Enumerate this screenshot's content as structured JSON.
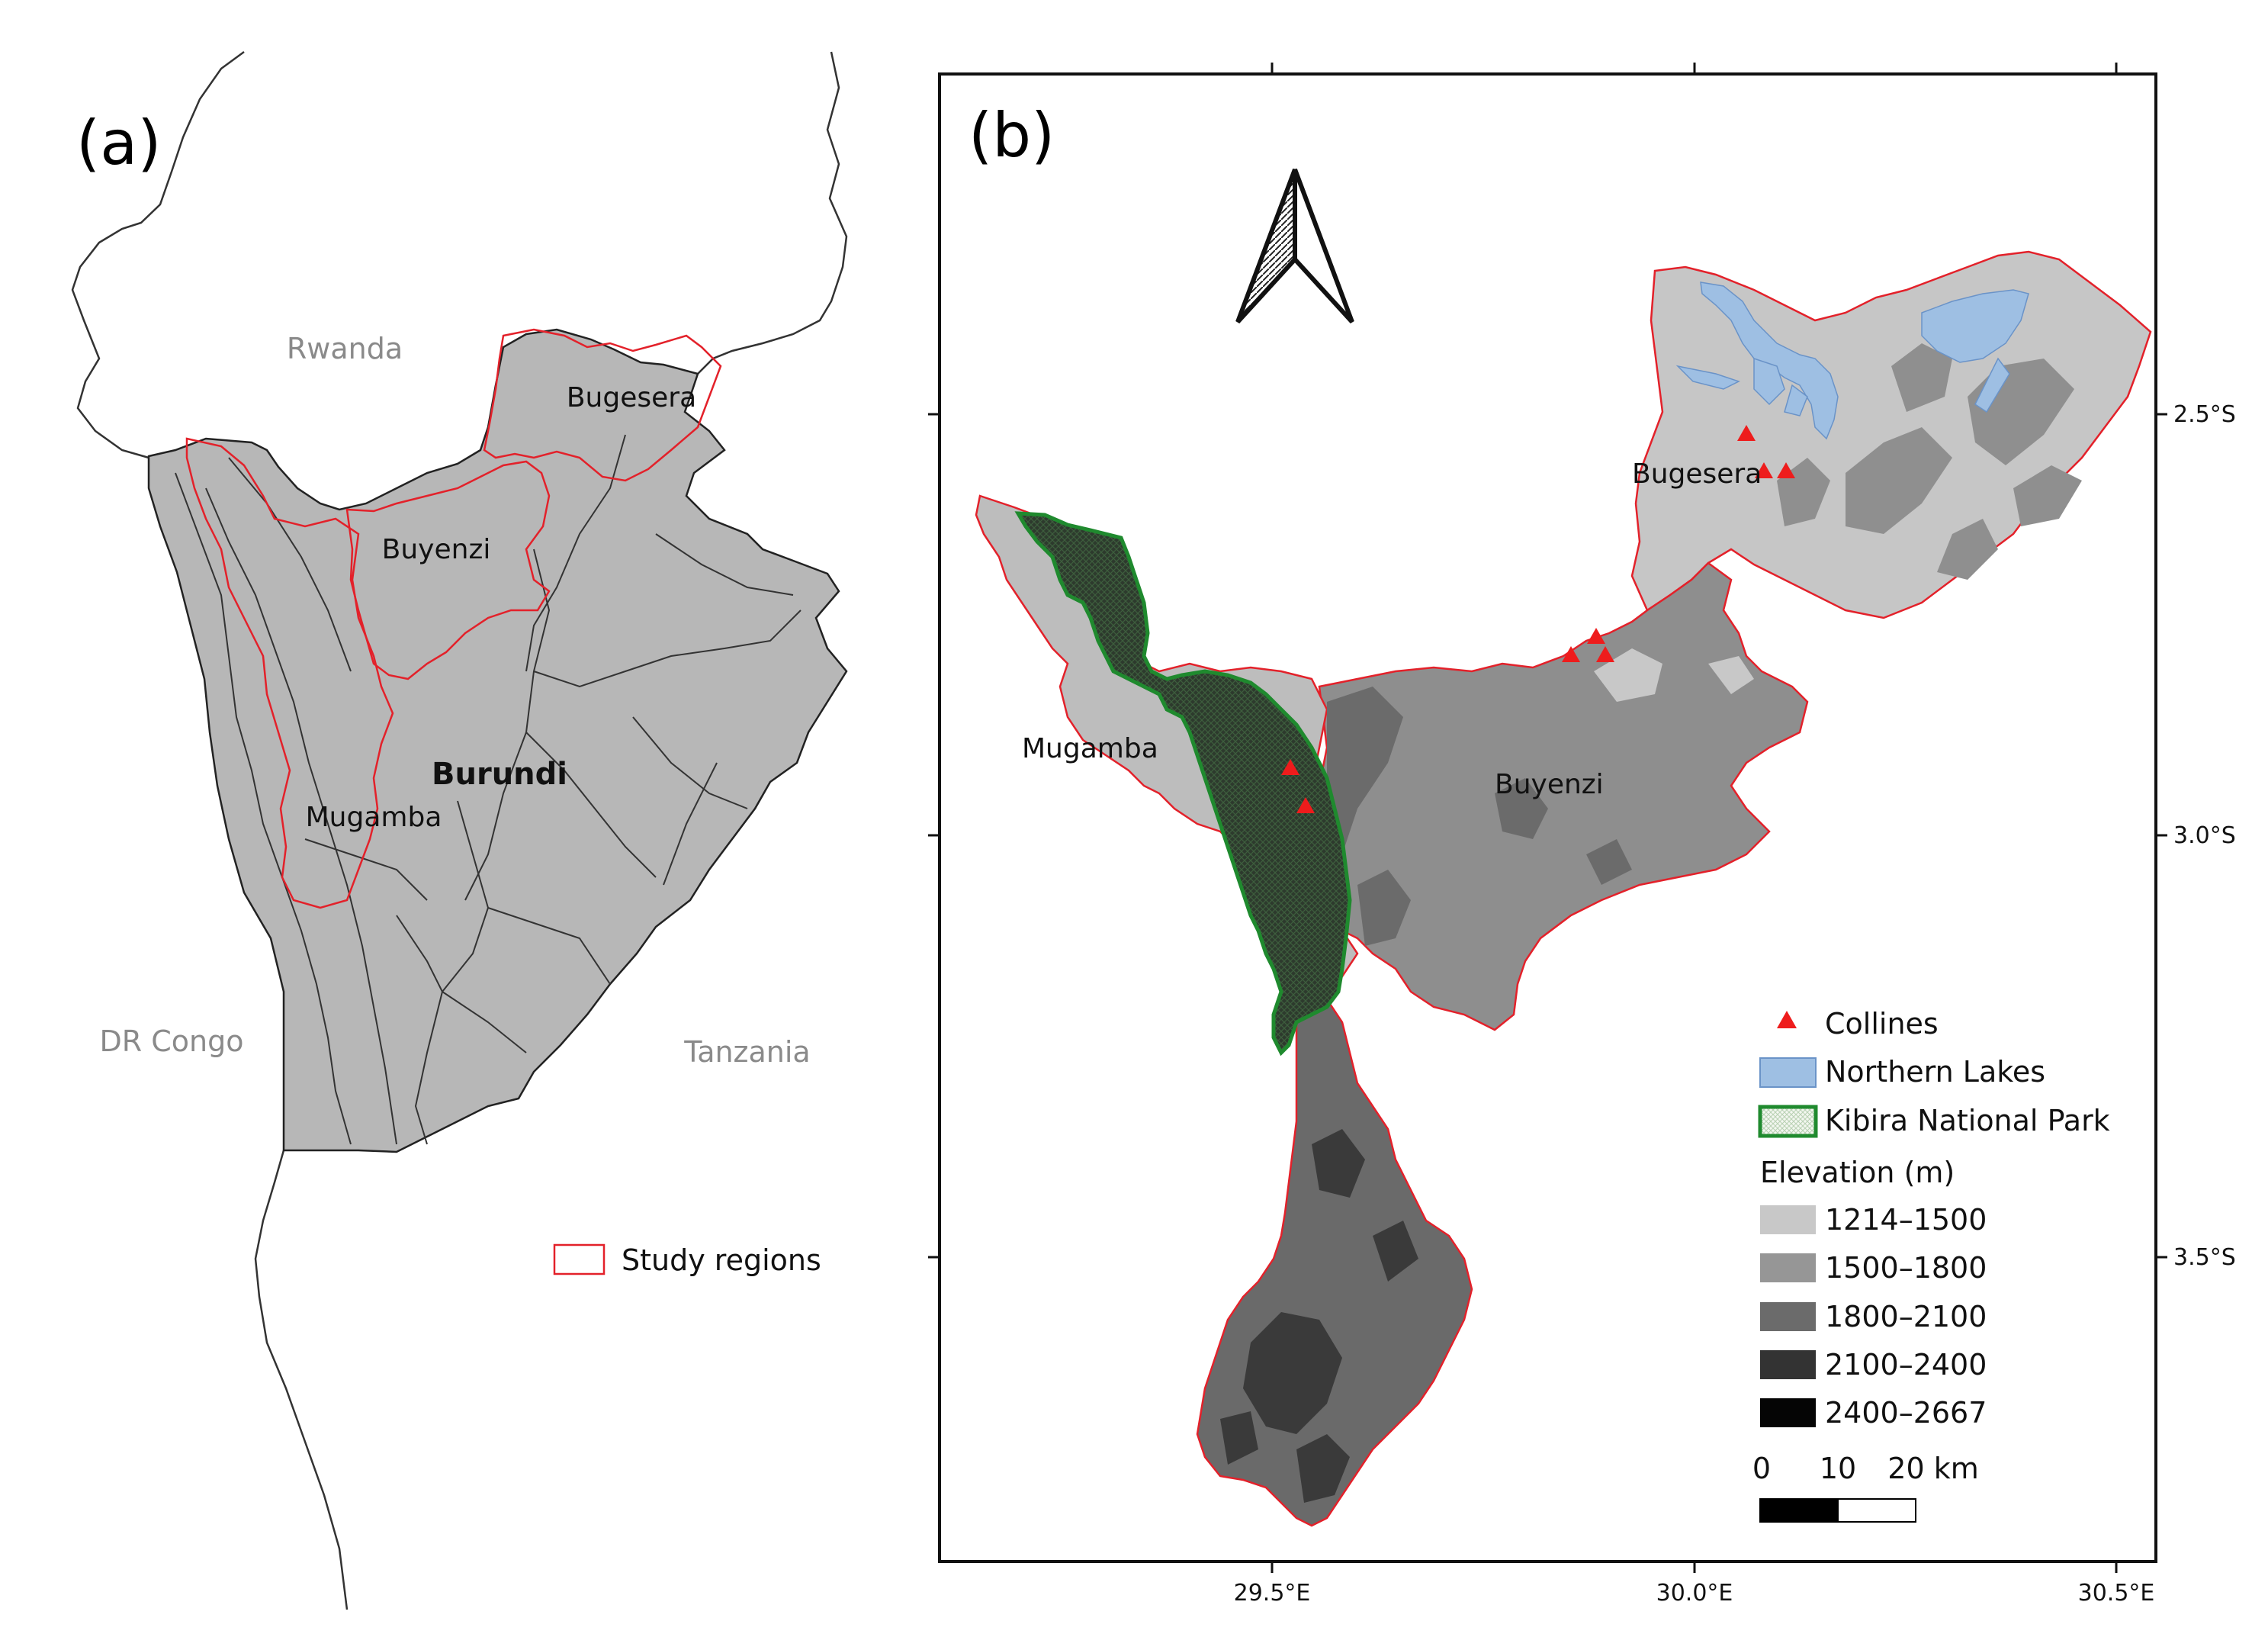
{
  "panel_a": {
    "label": "(a)",
    "countries": {
      "rwanda": "Rwanda",
      "drc": "DR Congo",
      "tanzania": "Tanzania",
      "burundi": "Burundi"
    },
    "regions": {
      "bugesera": "Bugesera",
      "buyenzi": "Buyenzi",
      "mugamba": "Mugamba"
    },
    "legend": {
      "study_regions": "Study regions"
    }
  },
  "panel_b": {
    "label": "(b)",
    "regions": {
      "bugesera": "Bugesera",
      "buyenzi": "Buyenzi",
      "mugamba": "Mugamba"
    },
    "x_ticks": [
      "29.5°E",
      "30.0°E",
      "30.5°E"
    ],
    "y_ticks": [
      "2.5°S",
      "3.0°S",
      "3.5°S"
    ],
    "legend": {
      "collines": "Collines",
      "northern_lakes": "Northern Lakes",
      "kibira": "Kibira National Park",
      "elevation_title": "Elevation (m)",
      "elevation_classes": [
        "1214–1500",
        "1500–1800",
        "1800–2100",
        "2100–2400",
        "2400–2667"
      ]
    },
    "scale_bar": {
      "l0": "0",
      "l1": "10",
      "l2": "20 km"
    }
  },
  "colors": {
    "study_region_outline": "#e3212a",
    "northern_lakes": "#9ebfe3",
    "kibira_outline": "#1f8a2e",
    "collines": "#ee1c1c",
    "elev_1": "#c8c8c8",
    "elev_2": "#969696",
    "elev_3": "#6b6b6b",
    "elev_4": "#333333",
    "elev_5": "#050505"
  }
}
